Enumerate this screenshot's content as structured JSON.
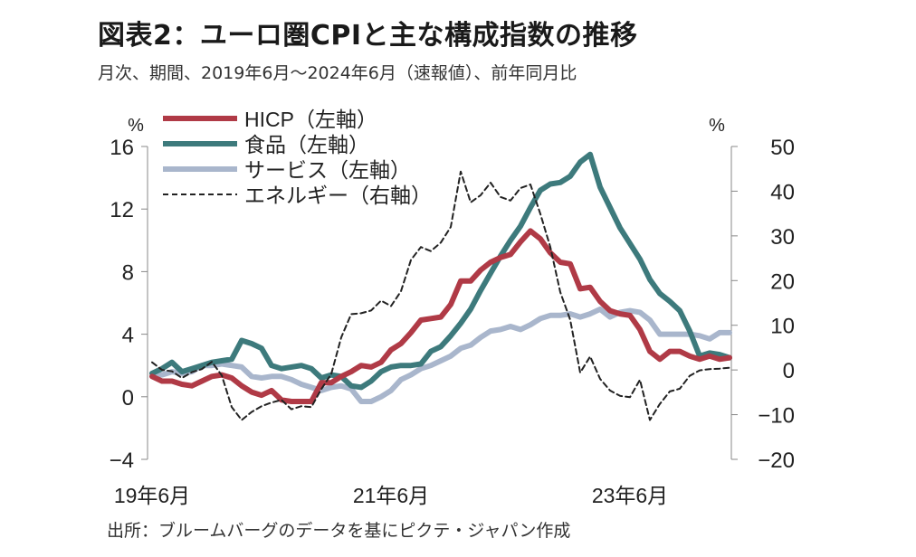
{
  "title": "図表2：ユーロ圏CPIと主な構成指数の推移",
  "subtitle": "月次、期間、2019年6月～2024年6月（速報値）、前年同月比",
  "source": "出所：ブルームバーグのデータを基にピクテ・ジャパン作成",
  "colors": {
    "hicp": "#b03a46",
    "food": "#3d7a7c",
    "services": "#a9b6cc",
    "energy": "#222222"
  },
  "chart_data": {
    "type": "line",
    "left_axis": {
      "unit": "%",
      "ticks": [
        "16",
        "12",
        "8",
        "4",
        "0",
        "−4"
      ],
      "tick_values": [
        16,
        12,
        8,
        4,
        0,
        -4
      ],
      "range": [
        -4,
        16
      ]
    },
    "right_axis": {
      "unit": "%",
      "ticks": [
        "50",
        "40",
        "30",
        "20",
        "10",
        "0",
        "−10",
        "−20"
      ],
      "tick_values": [
        50,
        40,
        30,
        20,
        10,
        0,
        -10,
        -20
      ],
      "range": [
        -20,
        50
      ]
    },
    "x_labels": [
      {
        "label": "19年6月",
        "index": 0
      },
      {
        "label": "21年6月",
        "index": 24
      },
      {
        "label": "23年6月",
        "index": 48
      }
    ],
    "series": [
      {
        "name": "HICP（左軸）",
        "key": "hicp",
        "axis": "left",
        "values": [
          1.3,
          1.0,
          1.0,
          0.8,
          0.7,
          1.0,
          1.3,
          1.4,
          1.2,
          0.7,
          0.3,
          0.1,
          0.4,
          -0.2,
          -0.3,
          -0.3,
          -0.3,
          0.9,
          0.9,
          1.3,
          1.6,
          2.0,
          1.9,
          2.2,
          3.0,
          3.4,
          4.1,
          4.9,
          5.0,
          5.1,
          5.9,
          7.4,
          7.4,
          8.1,
          8.6,
          8.9,
          9.1,
          9.9,
          10.6,
          10.1,
          9.2,
          8.6,
          8.5,
          6.9,
          7.0,
          6.1,
          5.5,
          5.3,
          5.2,
          4.3,
          2.9,
          2.4,
          2.9,
          2.9,
          2.6,
          2.4,
          2.6,
          2.4,
          2.5
        ]
      },
      {
        "name": "食品（左軸）",
        "key": "food",
        "axis": "left",
        "values": [
          1.5,
          1.8,
          2.2,
          1.6,
          1.8,
          2.0,
          2.2,
          2.3,
          2.4,
          3.6,
          3.4,
          3.1,
          2.0,
          1.8,
          1.9,
          2.0,
          1.8,
          1.2,
          1.4,
          1.3,
          0.7,
          0.6,
          1.0,
          1.6,
          1.9,
          2.0,
          2.0,
          2.1,
          2.9,
          3.2,
          3.9,
          4.7,
          5.6,
          6.8,
          7.9,
          9.0,
          10.0,
          10.9,
          12.1,
          13.2,
          13.6,
          13.7,
          14.1,
          15.0,
          15.5,
          13.4,
          12.1,
          10.8,
          9.8,
          8.8,
          7.5,
          6.6,
          6.1,
          5.5,
          4.2,
          2.6,
          2.8,
          2.7,
          2.5
        ]
      },
      {
        "name": "サービス（左軸）",
        "key": "services",
        "axis": "left",
        "values": [
          1.5,
          1.4,
          1.6,
          1.5,
          1.6,
          2.0,
          2.0,
          2.1,
          2.0,
          1.9,
          1.3,
          1.2,
          1.3,
          1.3,
          1.1,
          0.8,
          0.6,
          0.4,
          0.6,
          0.7,
          0.5,
          -0.3,
          -0.3,
          0.0,
          0.4,
          1.1,
          1.4,
          1.8,
          2.0,
          2.3,
          2.6,
          3.1,
          3.3,
          3.8,
          4.2,
          4.3,
          4.5,
          4.3,
          4.6,
          5.0,
          5.2,
          5.2,
          5.3,
          5.1,
          5.3,
          5.6,
          5.1,
          5.4,
          5.5,
          5.4,
          4.9,
          4.0,
          4.0,
          4.0,
          4.0,
          3.9,
          3.7,
          4.1,
          4.1
        ]
      },
      {
        "name": "エネルギー（右軸）",
        "key": "energy",
        "axis": "right",
        "values": [
          1.7,
          0.0,
          -0.3,
          -1.8,
          -0.5,
          0.2,
          1.8,
          -1.2,
          -8.3,
          -11.2,
          -9.4,
          -8.1,
          -7.3,
          -6.7,
          -8.8,
          -8.1,
          -8.3,
          -4.3,
          -0.9,
          7.3,
          12.5,
          12.7,
          13.3,
          15.5,
          14.3,
          17.6,
          24.6,
          27.5,
          26.6,
          28.5,
          32.0,
          44.4,
          37.5,
          39.1,
          41.9,
          38.7,
          37.9,
          40.7,
          41.5,
          34.9,
          27.5,
          17.4,
          11.2,
          -0.6,
          3.0,
          -2.0,
          -4.6,
          -5.8,
          -6.1,
          -2.2,
          -11.2,
          -7.6,
          -4.8,
          -4.2,
          -1.3,
          -0.1,
          0.2,
          0.3,
          0.5
        ]
      }
    ]
  }
}
